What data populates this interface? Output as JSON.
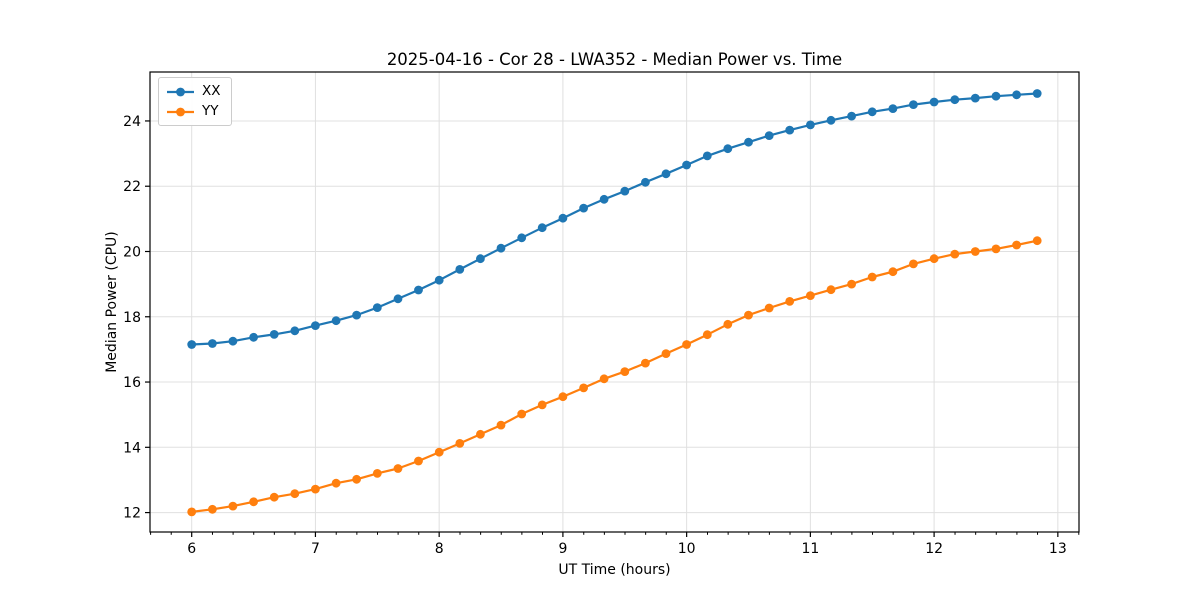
{
  "title": "2025-04-16 - Cor 28 - LWA352 - Median Power vs. Time",
  "axes": {
    "xlabel": "UT Time (hours)",
    "ylabel": "Median Power (CPU)"
  },
  "legend": {
    "position": "upper-left",
    "entries": [
      "XX",
      "YY"
    ]
  },
  "colors": {
    "series_xx": "#1f77b4",
    "series_yy": "#ff7f0e",
    "grid": "#e0e0e0",
    "spine": "#000000"
  },
  "chart_data": {
    "type": "line",
    "title": "2025-04-16 - Cor 28 - LWA352 - Median Power vs. Time",
    "xlabel": "UT Time (hours)",
    "ylabel": "Median Power (CPU)",
    "xlim": [
      5.663,
      13.171
    ],
    "ylim": [
      11.405,
      25.5
    ],
    "x_ticks": [
      6,
      7,
      8,
      9,
      10,
      11,
      12,
      13
    ],
    "y_ticks": [
      12,
      14,
      16,
      18,
      20,
      22,
      24
    ],
    "x_minor_step": 0.1667,
    "grid": true,
    "legend_position": "upper left",
    "marker": "circle",
    "x": [
      6.0,
      6.167,
      6.333,
      6.5,
      6.667,
      6.833,
      7.0,
      7.167,
      7.333,
      7.5,
      7.667,
      7.833,
      8.0,
      8.167,
      8.333,
      8.5,
      8.667,
      8.833,
      9.0,
      9.167,
      9.333,
      9.5,
      9.667,
      9.833,
      10.0,
      10.167,
      10.333,
      10.5,
      10.667,
      10.833,
      11.0,
      11.167,
      11.333,
      11.5,
      11.667,
      11.833,
      12.0,
      12.167,
      12.333,
      12.5,
      12.667,
      12.833
    ],
    "series": [
      {
        "name": "XX",
        "color": "#1f77b4",
        "values": [
          17.15,
          17.18,
          17.25,
          17.37,
          17.46,
          17.57,
          17.73,
          17.88,
          18.05,
          18.28,
          18.55,
          18.82,
          19.12,
          19.45,
          19.78,
          20.1,
          20.42,
          20.73,
          21.02,
          21.33,
          21.6,
          21.85,
          22.12,
          22.38,
          22.65,
          22.93,
          23.15,
          23.35,
          23.55,
          23.72,
          23.88,
          24.02,
          24.15,
          24.28,
          24.38,
          24.5,
          24.58,
          24.65,
          24.7,
          24.76,
          24.8,
          24.84
        ]
      },
      {
        "name": "YY",
        "color": "#ff7f0e",
        "values": [
          12.02,
          12.1,
          12.2,
          12.33,
          12.47,
          12.58,
          12.72,
          12.9,
          13.02,
          13.2,
          13.35,
          13.58,
          13.85,
          14.12,
          14.4,
          14.68,
          15.02,
          15.3,
          15.55,
          15.82,
          16.1,
          16.32,
          16.58,
          16.87,
          17.15,
          17.45,
          17.77,
          18.05,
          18.27,
          18.47,
          18.65,
          18.83,
          19.0,
          19.22,
          19.38,
          19.62,
          19.78,
          19.92,
          20.0,
          20.08,
          20.2,
          20.33
        ]
      }
    ]
  }
}
